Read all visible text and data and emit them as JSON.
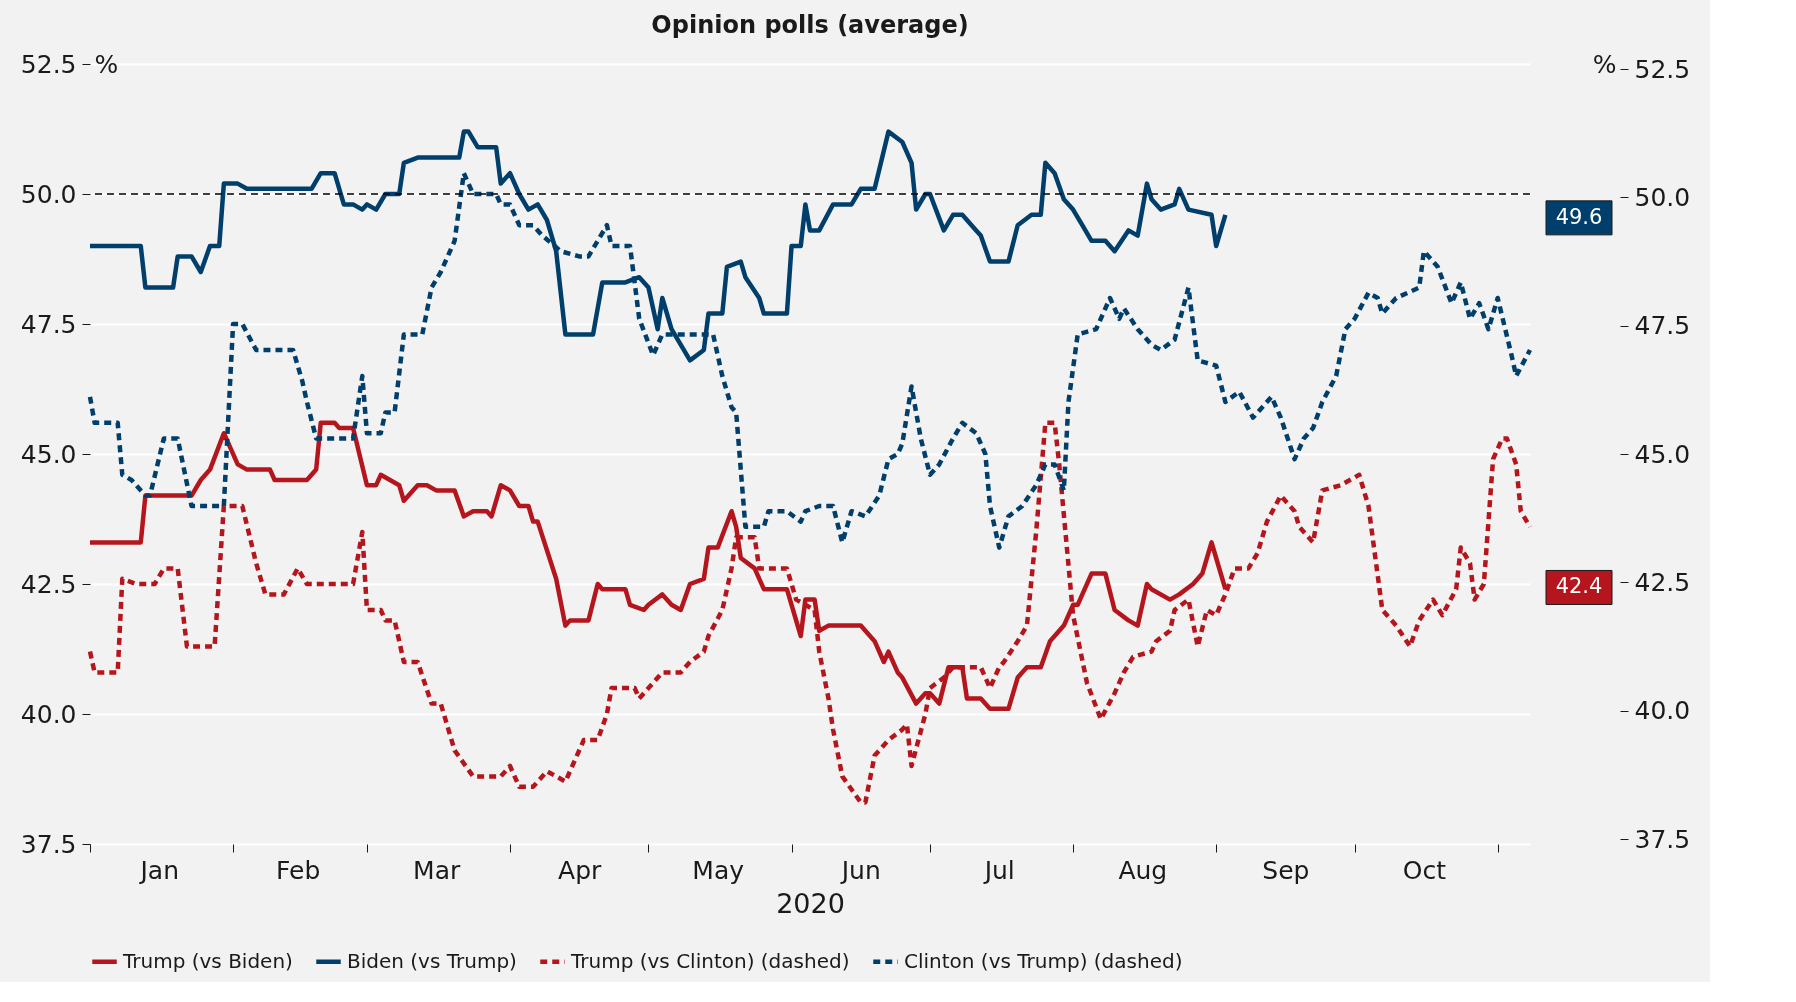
{
  "chart_data": {
    "type": "line",
    "title": "Opinion polls (average)",
    "xlabel": "2020",
    "ylabel": "%",
    "y2label": "%",
    "xlim": [
      "2020-01-01",
      "2020-11-08"
    ],
    "xticks": [
      {
        "value": "2020-01-01",
        "label": null
      },
      {
        "value": "2020-01-16",
        "label": "Jan"
      },
      {
        "value": "2020-02-01",
        "label": null
      },
      {
        "value": "2020-02-15",
        "label": "Feb"
      },
      {
        "value": "2020-03-01",
        "label": null
      },
      {
        "value": "2020-03-16",
        "label": "Mar"
      },
      {
        "value": "2020-04-01",
        "label": null
      },
      {
        "value": "2020-04-16",
        "label": "Apr"
      },
      {
        "value": "2020-05-01",
        "label": null
      },
      {
        "value": "2020-05-16",
        "label": "May"
      },
      {
        "value": "2020-06-01",
        "label": null
      },
      {
        "value": "2020-06-16",
        "label": "Jun"
      },
      {
        "value": "2020-07-01",
        "label": null
      },
      {
        "value": "2020-07-16",
        "label": "Jul"
      },
      {
        "value": "2020-08-01",
        "label": null
      },
      {
        "value": "2020-08-16",
        "label": "Aug"
      },
      {
        "value": "2020-09-01",
        "label": null
      },
      {
        "value": "2020-09-16",
        "label": "Sep"
      },
      {
        "value": "2020-10-01",
        "label": null
      },
      {
        "value": "2020-10-16",
        "label": "Oct"
      },
      {
        "value": "2020-11-01",
        "label": null
      }
    ],
    "ylim": [
      37.5,
      52.5
    ],
    "yticks": [
      37.5,
      {
        "value": 40,
        "label": "40.0"
      },
      42.5,
      {
        "value": 45,
        "label": "45.0"
      },
      47.5,
      {
        "value": 50,
        "label": "50.0"
      },
      52.5
    ],
    "y2lim": [
      37.5,
      52.5
    ],
    "y2ticks": [
      37.5,
      {
        "value": 40,
        "label": "40.0"
      },
      42.5,
      {
        "value": 45,
        "label": "45.0"
      },
      47.5,
      {
        "value": 50,
        "label": "50.0"
      },
      52.5
    ],
    "grid": "y",
    "legend": "bottom",
    "marker": "none",
    "ref_lines": [
      {
        "axis": "y",
        "value": 50,
        "color": "#000000",
        "line_style": "dashed"
      }
    ],
    "annotations": [
      "49.6",
      "42.4"
    ],
    "series": [
      {
        "name": "Trump (vs Biden)",
        "color": "#b5161d",
        "line_style": "solid",
        "x": [
          "2020-01-01",
          "2020-01-12",
          "2020-01-13",
          "2020-01-23",
          "2020-01-25",
          "2020-01-27",
          "2020-01-30",
          "2020-02-02",
          "2020-02-04",
          "2020-02-09",
          "2020-02-10",
          "2020-02-17",
          "2020-02-19",
          "2020-02-20",
          "2020-02-23",
          "2020-02-24",
          "2020-02-27",
          "2020-03-01",
          "2020-03-03",
          "2020-03-04",
          "2020-03-08",
          "2020-03-09",
          "2020-03-12",
          "2020-03-14",
          "2020-03-16",
          "2020-03-20",
          "2020-03-22",
          "2020-03-24",
          "2020-03-27",
          "2020-03-28",
          "2020-03-30",
          "2020-04-01",
          "2020-04-03",
          "2020-04-05",
          "2020-04-06",
          "2020-04-07",
          "2020-04-11",
          "2020-04-13",
          "2020-04-14",
          "2020-04-18",
          "2020-04-20",
          "2020-04-21",
          "2020-04-26",
          "2020-04-27",
          "2020-04-30",
          "2020-05-01",
          "2020-05-04",
          "2020-05-06",
          "2020-05-08",
          "2020-05-10",
          "2020-05-13",
          "2020-05-14",
          "2020-05-16",
          "2020-05-19",
          "2020-05-20",
          "2020-05-21",
          "2020-05-24",
          "2020-05-26",
          "2020-05-31",
          "2020-06-01",
          "2020-06-03",
          "2020-06-04",
          "2020-06-06",
          "2020-06-07",
          "2020-06-09",
          "2020-06-16",
          "2020-06-19",
          "2020-06-21",
          "2020-06-22",
          "2020-06-24",
          "2020-06-25",
          "2020-06-28",
          "2020-06-30",
          "2020-07-01",
          "2020-07-03",
          "2020-07-05",
          "2020-07-08",
          "2020-07-09",
          "2020-07-12",
          "2020-07-14",
          "2020-07-18",
          "2020-07-20",
          "2020-07-22",
          "2020-07-25",
          "2020-07-27",
          "2020-07-30",
          "2020-08-01",
          "2020-08-02",
          "2020-08-05",
          "2020-08-08",
          "2020-08-10",
          "2020-08-13",
          "2020-08-15",
          "2020-08-17",
          "2020-08-18",
          "2020-08-22",
          "2020-08-24",
          "2020-08-27",
          "2020-08-29",
          "2020-08-31",
          "2020-09-01",
          "2020-09-03"
        ],
        "values": [
          43.3,
          43.3,
          44.2,
          44.2,
          44.5,
          44.7,
          45.4,
          44.8,
          44.7,
          44.7,
          44.5,
          44.5,
          44.7,
          45.6,
          45.6,
          45.5,
          45.5,
          44.4,
          44.4,
          44.6,
          44.4,
          44.1,
          44.4,
          44.4,
          44.3,
          44.3,
          43.8,
          43.9,
          43.9,
          43.8,
          44.4,
          44.3,
          44.0,
          44.0,
          43.7,
          43.7,
          42.6,
          41.7,
          41.8,
          41.8,
          42.5,
          42.4,
          42.4,
          42.1,
          42.0,
          42.1,
          42.3,
          42.1,
          42.0,
          42.5,
          42.6,
          43.2,
          43.2,
          43.9,
          43.6,
          43.0,
          42.8,
          42.4,
          42.4,
          42.1,
          41.5,
          42.2,
          42.2,
          41.6,
          41.7,
          41.7,
          41.4,
          41.0,
          41.2,
          40.8,
          40.7,
          40.2,
          40.4,
          40.4,
          40.2,
          40.9,
          40.9,
          40.3,
          40.3,
          40.1,
          40.1,
          40.7,
          40.9,
          40.9,
          41.4,
          41.7,
          42.1,
          42.1,
          42.7,
          42.7,
          42.0,
          41.8,
          41.7,
          42.5,
          42.4,
          42.2,
          42.3,
          42.5,
          42.7,
          43.3,
          43.0,
          42.4
        ]
      },
      {
        "name": "Biden (vs Trump)",
        "color": "#003f6b",
        "line_style": "solid",
        "x": [
          "2020-01-01",
          "2020-01-12",
          "2020-01-13",
          "2020-01-19",
          "2020-01-20",
          "2020-01-23",
          "2020-01-25",
          "2020-01-27",
          "2020-01-29",
          "2020-01-30",
          "2020-02-02",
          "2020-02-04",
          "2020-02-18",
          "2020-02-20",
          "2020-02-23",
          "2020-02-25",
          "2020-02-27",
          "2020-02-29",
          "2020-03-01",
          "2020-03-03",
          "2020-03-05",
          "2020-03-08",
          "2020-03-09",
          "2020-03-12",
          "2020-03-21",
          "2020-03-22",
          "2020-03-23",
          "2020-03-25",
          "2020-03-29",
          "2020-03-30",
          "2020-04-01",
          "2020-04-03",
          "2020-04-05",
          "2020-04-07",
          "2020-04-09",
          "2020-04-11",
          "2020-04-13",
          "2020-04-19",
          "2020-04-21",
          "2020-04-26",
          "2020-04-29",
          "2020-05-01",
          "2020-05-03",
          "2020-05-04",
          "2020-05-06",
          "2020-05-10",
          "2020-05-13",
          "2020-05-14",
          "2020-05-17",
          "2020-05-18",
          "2020-05-21",
          "2020-05-22",
          "2020-05-25",
          "2020-05-26",
          "2020-05-31",
          "2020-06-01",
          "2020-06-03",
          "2020-06-04",
          "2020-06-05",
          "2020-06-07",
          "2020-06-10",
          "2020-06-14",
          "2020-06-16",
          "2020-06-19",
          "2020-06-22",
          "2020-06-25",
          "2020-06-27",
          "2020-06-28",
          "2020-06-30",
          "2020-07-01",
          "2020-07-04",
          "2020-07-06",
          "2020-07-08",
          "2020-07-11",
          "2020-07-12",
          "2020-07-14",
          "2020-07-18",
          "2020-07-20",
          "2020-07-23",
          "2020-07-25",
          "2020-07-26",
          "2020-07-28",
          "2020-07-30",
          "2020-08-01",
          "2020-08-03",
          "2020-08-05",
          "2020-08-08",
          "2020-08-10",
          "2020-08-13",
          "2020-08-15",
          "2020-08-17",
          "2020-08-18",
          "2020-08-20",
          "2020-08-23",
          "2020-08-24",
          "2020-08-26",
          "2020-08-31",
          "2020-09-01",
          "2020-09-03"
        ],
        "values": [
          49.0,
          49.0,
          48.2,
          48.2,
          48.8,
          48.8,
          48.5,
          49.0,
          49.0,
          50.2,
          50.2,
          50.1,
          50.1,
          50.4,
          50.4,
          49.8,
          49.8,
          49.7,
          49.8,
          49.7,
          50.0,
          50.0,
          50.6,
          50.7,
          50.7,
          51.2,
          51.2,
          50.9,
          50.9,
          50.2,
          50.4,
          50.0,
          49.7,
          49.8,
          49.5,
          48.9,
          47.3,
          47.3,
          48.3,
          48.3,
          48.4,
          48.2,
          47.4,
          48.0,
          47.4,
          46.8,
          47.0,
          47.7,
          47.7,
          48.6,
          48.7,
          48.4,
          48.0,
          47.7,
          47.7,
          49.0,
          49.0,
          49.8,
          49.3,
          49.3,
          49.8,
          49.8,
          50.1,
          50.1,
          51.2,
          51.0,
          50.6,
          49.7,
          50.0,
          50.0,
          49.3,
          49.6,
          49.6,
          49.3,
          49.2,
          48.7,
          48.7,
          49.4,
          49.6,
          49.6,
          50.6,
          50.4,
          49.9,
          49.7,
          49.4,
          49.1,
          49.1,
          48.9,
          49.3,
          49.2,
          50.2,
          49.9,
          49.7,
          49.8,
          50.1,
          49.7,
          49.6,
          49.0,
          49.6
        ]
      },
      {
        "name": "Trump (vs Clinton) (dashed)",
        "color": "#b5161d",
        "line_style": "dashed",
        "x": [
          "2020-01-01",
          "2020-01-02",
          "2020-01-07",
          "2020-01-08",
          "2020-01-11",
          "2020-01-15",
          "2020-01-17",
          "2020-01-20",
          "2020-01-22",
          "2020-01-28",
          "2020-01-30",
          "2020-02-03",
          "2020-02-06",
          "2020-02-08",
          "2020-02-12",
          "2020-02-15",
          "2020-02-17",
          "2020-02-27",
          "2020-02-29",
          "2020-03-01",
          "2020-03-04",
          "2020-03-05",
          "2020-03-07",
          "2020-03-09",
          "2020-03-12",
          "2020-03-15",
          "2020-03-17",
          "2020-03-20",
          "2020-03-24",
          "2020-03-30",
          "2020-04-01",
          "2020-04-03",
          "2020-04-06",
          "2020-04-09",
          "2020-04-11",
          "2020-04-13",
          "2020-04-15",
          "2020-04-17",
          "2020-04-20",
          "2020-04-22",
          "2020-04-23",
          "2020-04-28",
          "2020-04-29",
          "2020-05-04",
          "2020-05-08",
          "2020-05-10",
          "2020-05-13",
          "2020-05-14",
          "2020-05-17",
          "2020-05-19",
          "2020-05-20",
          "2020-05-24",
          "2020-05-25",
          "2020-05-31",
          "2020-06-02",
          "2020-06-06",
          "2020-06-07",
          "2020-06-09",
          "2020-06-10",
          "2020-06-12",
          "2020-06-16",
          "2020-06-17",
          "2020-06-19",
          "2020-06-22",
          "2020-06-25",
          "2020-06-26",
          "2020-06-27",
          "2020-06-30",
          "2020-07-01",
          "2020-07-04",
          "2020-07-06",
          "2020-07-12",
          "2020-07-14",
          "2020-07-16",
          "2020-07-17",
          "2020-07-20",
          "2020-07-22",
          "2020-07-24",
          "2020-07-26",
          "2020-07-28",
          "2020-07-29",
          "2020-08-01",
          "2020-08-04",
          "2020-08-07",
          "2020-08-10",
          "2020-08-12",
          "2020-08-14",
          "2020-08-18",
          "2020-08-19",
          "2020-08-22",
          "2020-08-23",
          "2020-08-26",
          "2020-08-28",
          "2020-08-30",
          "2020-09-01",
          "2020-09-03",
          "2020-09-05",
          "2020-09-08",
          "2020-09-10",
          "2020-09-12",
          "2020-09-15",
          "2020-09-18",
          "2020-09-19",
          "2020-09-22",
          "2020-09-24",
          "2020-09-28",
          "2020-10-02",
          "2020-10-04",
          "2020-10-07",
          "2020-10-10",
          "2020-10-13",
          "2020-10-15",
          "2020-10-18",
          "2020-10-20",
          "2020-10-23",
          "2020-10-24",
          "2020-10-26",
          "2020-10-27",
          "2020-10-29",
          "2020-10-31",
          "2020-11-02",
          "2020-11-03",
          "2020-11-05",
          "2020-11-06",
          "2020-11-08"
        ],
        "values": [
          41.2,
          40.8,
          40.8,
          42.6,
          42.5,
          42.5,
          42.8,
          42.8,
          41.3,
          41.3,
          44.0,
          44.0,
          42.9,
          42.3,
          42.3,
          42.8,
          42.5,
          42.5,
          43.5,
          42.0,
          42.0,
          41.8,
          41.8,
          41.0,
          41.0,
          40.2,
          40.2,
          39.3,
          38.8,
          38.8,
          39.0,
          38.6,
          38.6,
          38.9,
          38.8,
          38.7,
          39.1,
          39.5,
          39.5,
          40.0,
          40.5,
          40.5,
          40.3,
          40.8,
          40.8,
          41.0,
          41.2,
          41.5,
          42.0,
          42.8,
          43.4,
          43.4,
          42.8,
          42.8,
          42.2,
          42.0,
          41.2,
          40.3,
          39.7,
          38.8,
          38.3,
          38.3,
          39.2,
          39.5,
          39.7,
          39.8,
          39.0,
          40.0,
          40.5,
          40.7,
          40.9,
          40.9,
          40.5,
          40.9,
          41.0,
          41.4,
          41.7,
          43.5,
          45.6,
          45.6,
          44.8,
          41.9,
          40.6,
          39.9,
          40.4,
          40.8,
          41.1,
          41.2,
          41.4,
          41.6,
          42.0,
          42.2,
          41.3,
          42.0,
          41.9,
          42.3,
          42.8,
          42.8,
          43.1,
          43.7,
          44.2,
          43.9,
          43.6,
          43.3,
          44.3,
          44.4,
          44.6,
          44.0,
          42.0,
          41.7,
          41.3,
          41.8,
          42.2,
          41.9,
          42.4,
          43.2,
          42.9,
          42.2,
          42.5,
          44.9,
          45.3,
          45.3,
          44.8,
          43.9,
          43.6
        ]
      },
      {
        "name": "Clinton (vs Trump) (dashed)",
        "color": "#003f6b",
        "line_style": "dashed",
        "x": [
          "2020-01-01",
          "2020-01-02",
          "2020-01-07",
          "2020-01-08",
          "2020-01-10",
          "2020-01-13",
          "2020-01-14",
          "2020-01-17",
          "2020-01-20",
          "2020-01-23",
          "2020-01-30",
          "2020-02-01",
          "2020-02-03",
          "2020-02-06",
          "2020-02-14",
          "2020-02-16",
          "2020-02-17",
          "2020-02-19",
          "2020-02-27",
          "2020-02-29",
          "2020-03-01",
          "2020-03-04",
          "2020-03-05",
          "2020-03-07",
          "2020-03-09",
          "2020-03-13",
          "2020-03-15",
          "2020-03-17",
          "2020-03-20",
          "2020-03-22",
          "2020-03-24",
          "2020-03-29",
          "2020-03-30",
          "2020-04-01",
          "2020-04-03",
          "2020-04-06",
          "2020-04-08",
          "2020-04-12",
          "2020-04-16",
          "2020-04-18",
          "2020-04-22",
          "2020-04-23",
          "2020-04-27",
          "2020-04-29",
          "2020-05-02",
          "2020-05-04",
          "2020-05-15",
          "2020-05-17",
          "2020-05-19",
          "2020-05-20",
          "2020-05-22",
          "2020-05-26",
          "2020-05-27",
          "2020-05-31",
          "2020-06-03",
          "2020-06-04",
          "2020-06-07",
          "2020-06-10",
          "2020-06-12",
          "2020-06-14",
          "2020-06-17",
          "2020-06-20",
          "2020-06-22",
          "2020-06-24",
          "2020-06-25",
          "2020-06-27",
          "2020-06-29",
          "2020-07-01",
          "2020-07-03",
          "2020-07-06",
          "2020-07-08",
          "2020-07-11",
          "2020-07-13",
          "2020-07-14",
          "2020-07-16",
          "2020-07-18",
          "2020-07-21",
          "2020-07-24",
          "2020-07-26",
          "2020-07-28",
          "2020-07-30",
          "2020-07-31",
          "2020-08-02",
          "2020-08-06",
          "2020-08-09",
          "2020-08-11",
          "2020-08-12",
          "2020-08-15",
          "2020-08-18",
          "2020-08-20",
          "2020-08-23",
          "2020-08-26",
          "2020-08-28",
          "2020-09-01",
          "2020-09-03",
          "2020-09-06",
          "2020-09-09",
          "2020-09-11",
          "2020-09-13",
          "2020-09-15",
          "2020-09-18",
          "2020-09-20",
          "2020-09-22",
          "2020-09-24",
          "2020-09-27",
          "2020-09-29",
          "2020-10-01",
          "2020-10-04",
          "2020-10-06",
          "2020-10-07",
          "2020-10-10",
          "2020-10-15",
          "2020-10-16",
          "2020-10-19",
          "2020-10-22",
          "2020-10-24",
          "2020-10-26",
          "2020-10-28",
          "2020-10-30",
          "2020-11-01",
          "2020-11-04",
          "2020-11-05",
          "2020-11-08"
        ],
        "values": [
          46.1,
          45.6,
          45.6,
          44.6,
          44.5,
          44.2,
          44.2,
          45.3,
          45.3,
          44.0,
          44.0,
          47.5,
          47.5,
          47.0,
          47.0,
          46.4,
          46.0,
          45.3,
          45.3,
          46.5,
          45.4,
          45.4,
          45.8,
          45.8,
          47.3,
          47.3,
          48.2,
          48.5,
          49.1,
          50.4,
          50.0,
          50.0,
          49.8,
          49.8,
          49.4,
          49.4,
          49.2,
          48.9,
          48.8,
          48.8,
          49.4,
          49.0,
          49.0,
          47.6,
          46.9,
          47.3,
          47.3,
          46.5,
          45.9,
          45.8,
          43.6,
          43.6,
          43.9,
          43.9,
          43.7,
          43.9,
          44.0,
          44.0,
          43.3,
          43.9,
          43.8,
          44.2,
          44.9,
          45.0,
          45.2,
          46.3,
          45.3,
          44.6,
          44.8,
          45.3,
          45.6,
          45.4,
          45.0,
          44.0,
          43.2,
          43.8,
          44.0,
          44.4,
          44.8,
          44.8,
          44.3,
          46.0,
          47.3,
          47.4,
          48.0,
          47.6,
          47.8,
          47.4,
          47.1,
          47.0,
          47.2,
          48.2,
          46.8,
          46.7,
          46.0,
          46.2,
          45.7,
          45.9,
          46.1,
          45.7,
          44.9,
          45.3,
          45.5,
          46.0,
          46.5,
          47.4,
          47.6,
          48.1,
          48.0,
          47.7,
          48.0,
          48.2,
          48.9,
          48.6,
          47.9,
          48.3,
          47.6,
          47.9,
          47.4,
          48.0,
          46.9,
          46.5,
          47.0
        ]
      }
    ]
  }
}
